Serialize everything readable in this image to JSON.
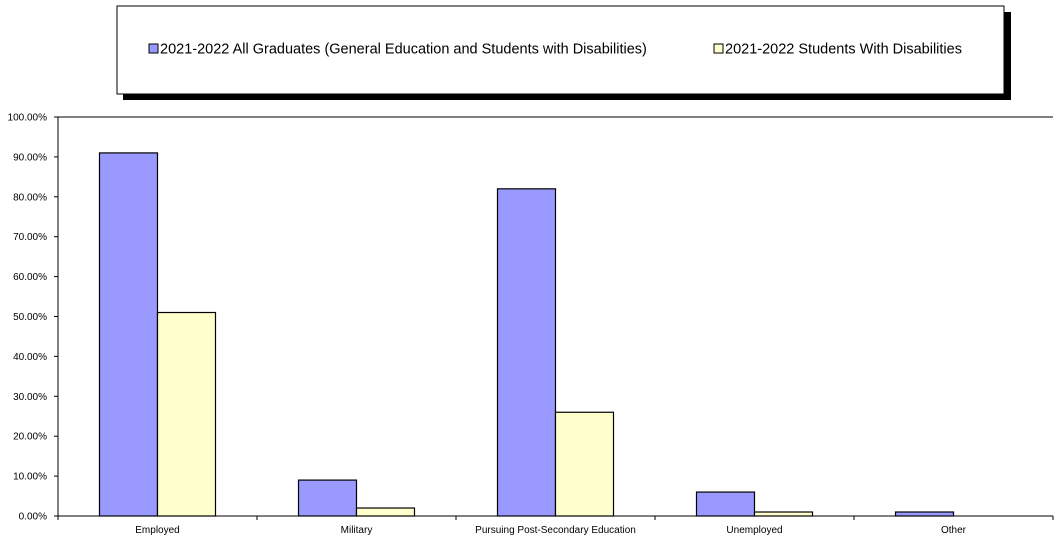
{
  "chart_data": {
    "type": "bar",
    "title": "",
    "xlabel": "",
    "ylabel": "",
    "categories": [
      "Employed",
      "Military",
      "Pursuing Post-Secondary Education",
      "Unemployed",
      "Other"
    ],
    "series": [
      {
        "name": "2021-2022 All Graduates (General Education and Students with Disabilities)",
        "values": [
          91,
          9,
          82,
          6,
          1
        ],
        "color": "#9999ff"
      },
      {
        "name": "2021-2022 Students With Disabilities",
        "values": [
          51,
          2,
          26,
          1,
          0
        ],
        "color": "#ffffcc"
      }
    ],
    "ylim": [
      0,
      100
    ],
    "yticks": [
      0,
      10,
      20,
      30,
      40,
      50,
      60,
      70,
      80,
      90,
      100
    ],
    "ytick_labels": [
      "0.00%",
      "10.00%",
      "20.00%",
      "30.00%",
      "40.00%",
      "50.00%",
      "60.00%",
      "70.00%",
      "80.00%",
      "90.00%",
      "100.00%"
    ],
    "grid": false,
    "legend_position": "top"
  }
}
